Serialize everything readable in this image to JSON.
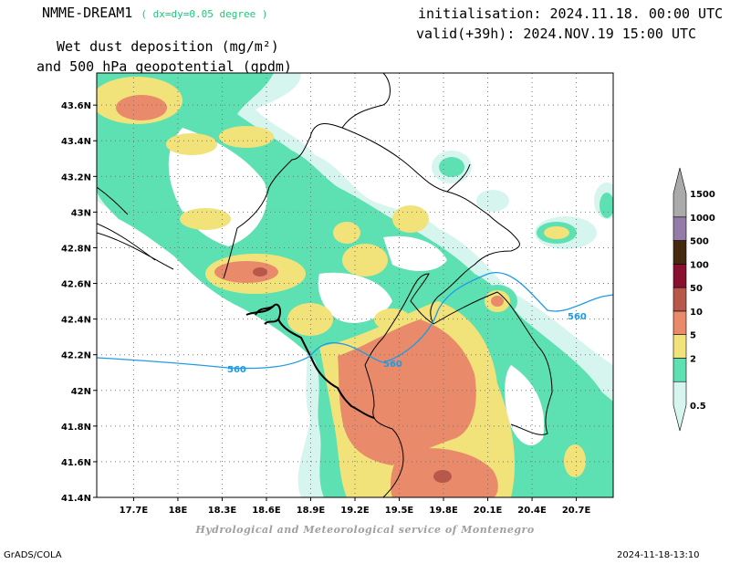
{
  "header": {
    "model": "NMME-DREAM1",
    "resolution": "( dx=dy=0.05 degree )",
    "variable_line1": "Wet dust deposition (mg/m²)",
    "variable_line2": "and 500 hPa geopotential (gpdm)",
    "initialisation": "initialisation: 2024.11.18. 00:00 UTC",
    "valid": "valid(+39h): 2024.NOV.19 15:00 UTC"
  },
  "footer": {
    "credit": "Hydrological and Meteorological service of Montenegro",
    "software": "GrADS/COLA",
    "timestamp": "2024-11-18-13:10"
  },
  "map": {
    "lon_ticks": [
      "17.7E",
      "18E",
      "18.3E",
      "18.6E",
      "18.9E",
      "19.2E",
      "19.5E",
      "19.8E",
      "20.1E",
      "20.4E",
      "20.7E"
    ],
    "lon_values": [
      17.7,
      18.0,
      18.3,
      18.6,
      18.9,
      19.2,
      19.5,
      19.8,
      20.1,
      20.4,
      20.7
    ],
    "lat_ticks": [
      "43.6N",
      "43.4N",
      "43.2N",
      "43N",
      "42.8N",
      "42.6N",
      "42.4N",
      "42.2N",
      "42N",
      "41.8N",
      "41.6N",
      "41.4N"
    ],
    "lat_values": [
      43.6,
      43.4,
      43.2,
      43.0,
      42.8,
      42.6,
      42.4,
      42.2,
      42.0,
      41.8,
      41.6,
      41.4
    ],
    "lon_range": [
      17.45,
      20.95
    ],
    "lat_range": [
      41.4,
      43.78
    ],
    "contour_labels": [
      "560",
      "560",
      "560"
    ],
    "grid": "dotted"
  },
  "legend": {
    "levels": [
      "0.5",
      "2",
      "5",
      "10",
      "50",
      "100",
      "500",
      "1000",
      "1500"
    ],
    "colors": [
      "#d6f5ef",
      "#5de0b2",
      "#f2e27a",
      "#e98a6a",
      "#b8584a",
      "#8a1030",
      "#452a10",
      "#957ba8",
      "#aaaaaa"
    ]
  }
}
